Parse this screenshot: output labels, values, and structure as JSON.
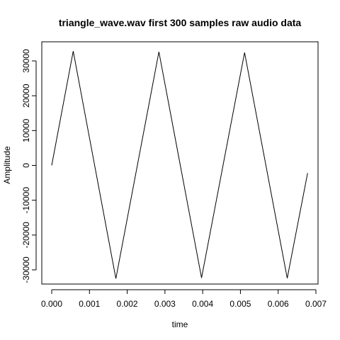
{
  "chart_data": {
    "type": "line",
    "title": "triangle_wave.wav first 300 samples raw audio data",
    "xlabel": "time",
    "ylabel": "Amplitude",
    "xlim": [
      0.0,
      0.007
    ],
    "ylim": [
      -35000,
      35000
    ],
    "xticks": [
      0.0,
      0.001,
      0.002,
      0.003,
      0.004,
      0.005,
      0.006,
      0.007
    ],
    "xtick_labels": [
      "0.000",
      "0.001",
      "0.002",
      "0.003",
      "0.004",
      "0.005",
      "0.006",
      "0.007"
    ],
    "yticks": [
      -30000,
      -20000,
      -10000,
      0,
      10000,
      20000,
      30000
    ],
    "ytick_labels": [
      "-30000",
      "-20000",
      "-10000",
      "0",
      "10000",
      "20000",
      "30000"
    ],
    "grid": false,
    "series": [
      {
        "color": "#000000",
        "x": [
          0.0,
          0.00057,
          0.0017,
          0.00284,
          0.00397,
          0.00511,
          0.00624,
          0.00678
        ],
        "y": [
          0,
          32800,
          -32500,
          32600,
          -32300,
          32400,
          -32400,
          -2200
        ]
      }
    ]
  }
}
